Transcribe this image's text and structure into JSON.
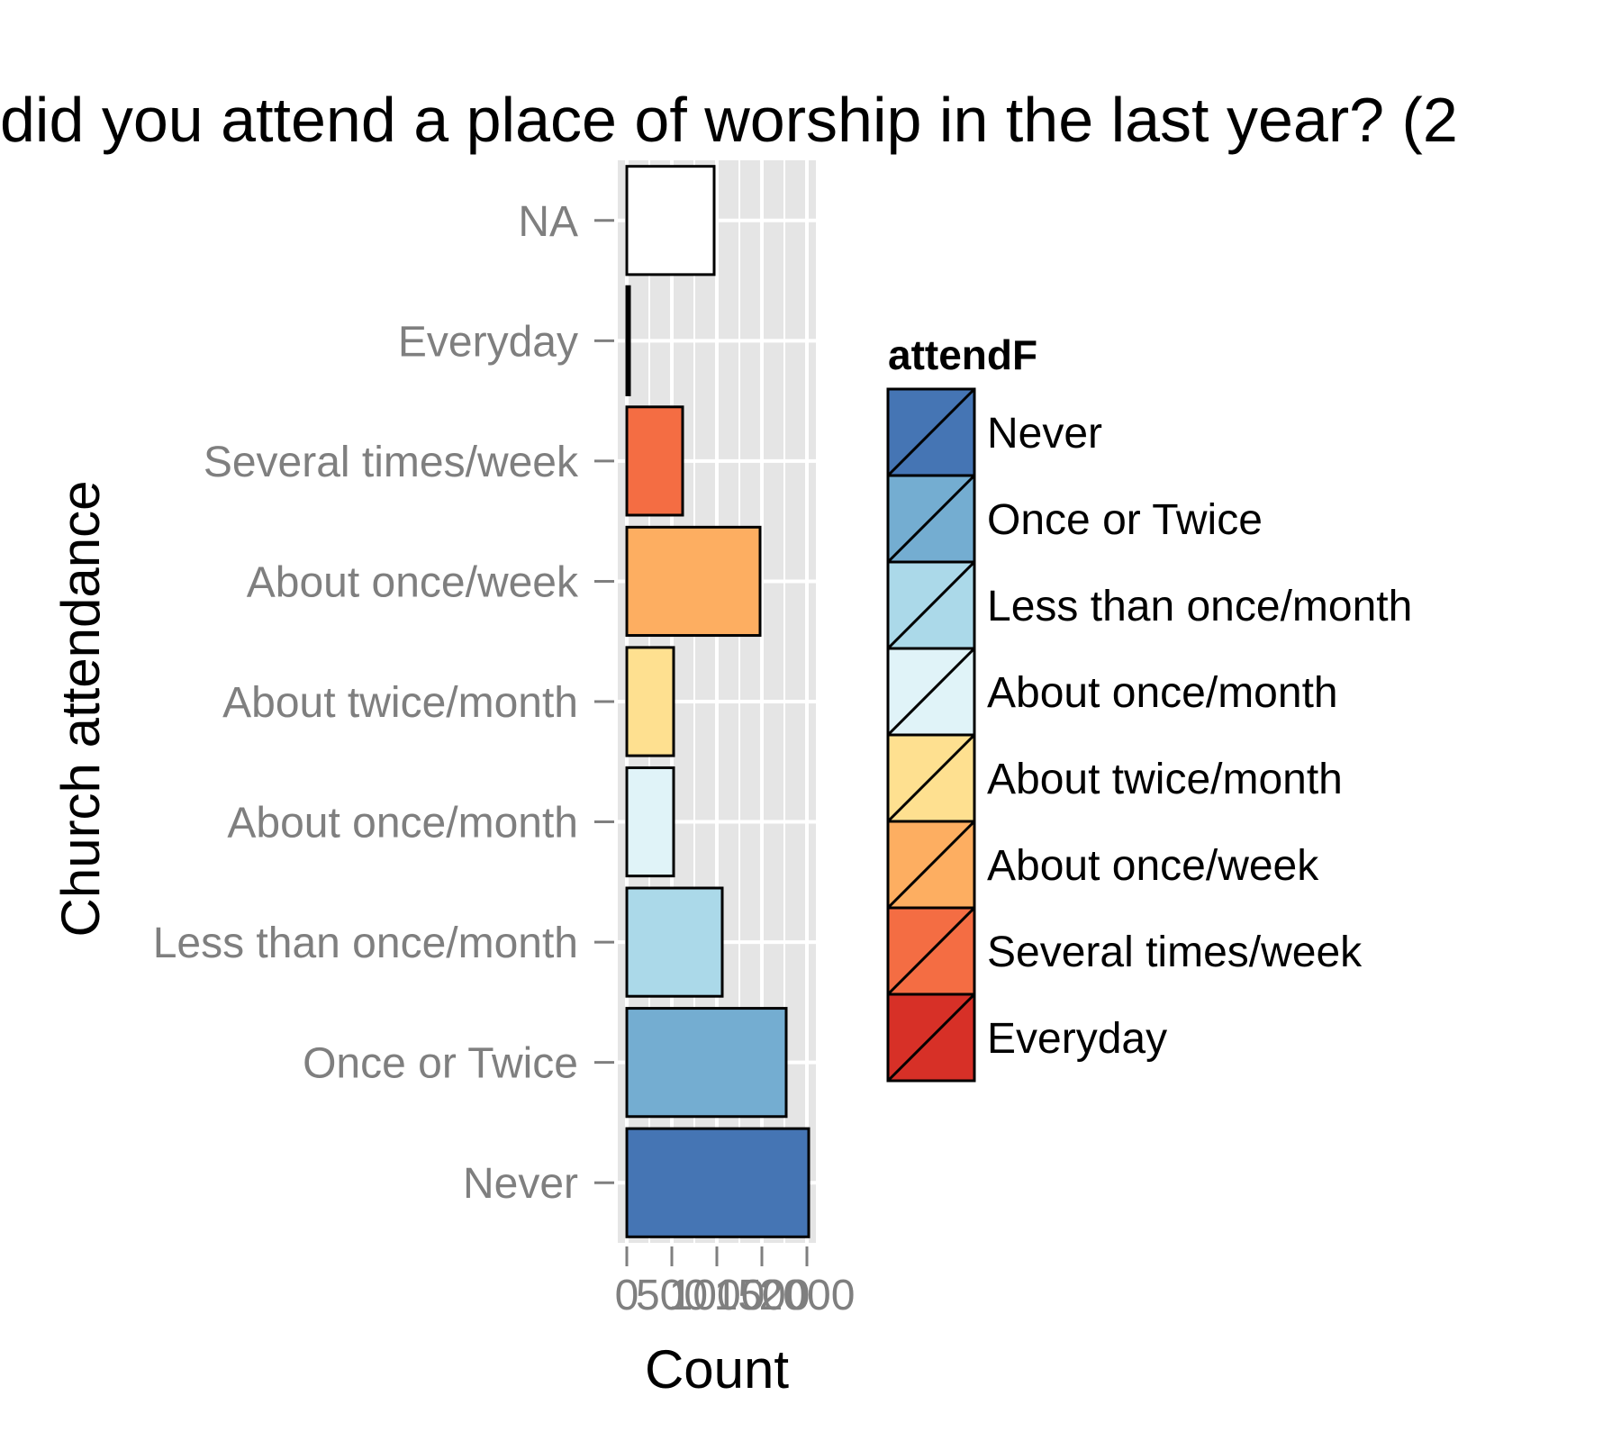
{
  "chart_data": {
    "type": "bar",
    "orientation": "horizontal",
    "title": "did you attend a place of worship in the last year? (2",
    "xlabel": "Count",
    "ylabel": "Church attendance",
    "categories": [
      "Never",
      "Once or Twice",
      "Less than once/month",
      "About once/month",
      "About twice/month",
      "About once/week",
      "Several times/week",
      "Everyday",
      "NA"
    ],
    "values": [
      2020,
      1770,
      1060,
      520,
      520,
      1480,
      620,
      30,
      970
    ],
    "xlim": [
      -100,
      2100
    ],
    "x_ticks": [
      0,
      500,
      1000,
      1500,
      2000
    ],
    "x_tick_labels": [
      "0",
      "500",
      "1000",
      "1500",
      "2000"
    ],
    "grid": true,
    "legend": {
      "title": "attendF",
      "position": "right",
      "entries": [
        "Never",
        "Once or Twice",
        "Less than once/month",
        "About once/month",
        "About twice/month",
        "About once/week",
        "Several times/week",
        "Everyday"
      ]
    },
    "colors": {
      "Never": "#4575b4",
      "Once or Twice": "#74add1",
      "Less than once/month": "#abd9e9",
      "About once/month": "#e0f3f8",
      "About twice/month": "#fee090",
      "About once/week": "#fdae61",
      "Several times/week": "#f46d43",
      "Everyday": "#d73027",
      "NA": "#ffffff"
    },
    "panel_background": "#e5e5e5",
    "grid_color": "#ffffff",
    "tick_label_color": "#7f7f7f"
  }
}
